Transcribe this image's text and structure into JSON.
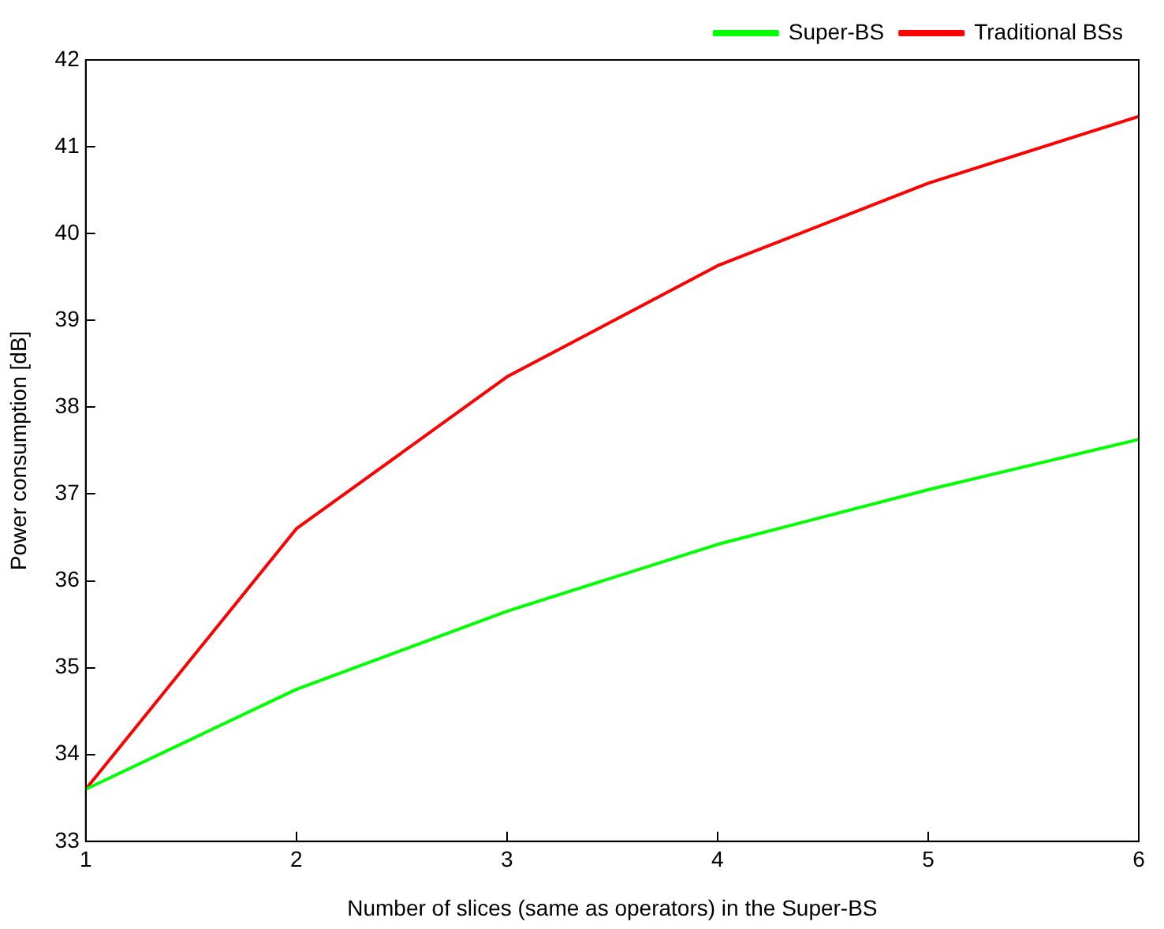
{
  "chart_data": {
    "type": "line",
    "xlabel": "Number of slices (same as operators) in the Super-BS",
    "ylabel": "Power consumption [dB]",
    "x": [
      1,
      2,
      3,
      4,
      5,
      6
    ],
    "series": [
      {
        "name": "Super-BS",
        "color": "#00ff00",
        "values": [
          33.6,
          34.75,
          35.65,
          36.42,
          37.05,
          37.63
        ]
      },
      {
        "name": "Traditional BSs",
        "color": "#ff0000",
        "values": [
          33.6,
          36.6,
          38.35,
          39.63,
          40.58,
          41.35
        ]
      }
    ],
    "xlim": [
      1,
      6
    ],
    "xticks": [
      1,
      2,
      3,
      4,
      5,
      6
    ],
    "ylim": [
      33,
      42
    ],
    "yticks": [
      33,
      34,
      35,
      36,
      37,
      38,
      39,
      40,
      41,
      42
    ],
    "grid": false,
    "legend": "top right",
    "marker": "none",
    "line_style": "solid"
  }
}
